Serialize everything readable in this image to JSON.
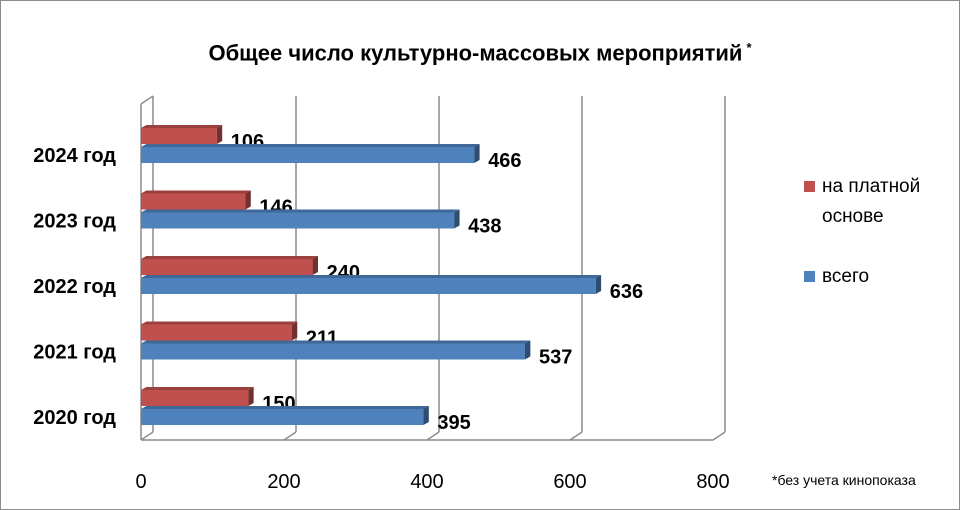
{
  "chart_data": {
    "type": "bar",
    "orientation": "horizontal",
    "title": "Общее число культурно-массовых мероприятий",
    "title_mark": "*",
    "categories": [
      "2024 год",
      "2023 год",
      "2022 год",
      "2021 год",
      "2020 год"
    ],
    "series": [
      {
        "name": "на платной основе",
        "values": [
          106,
          146,
          240,
          211,
          150
        ],
        "color": "#c0504d"
      },
      {
        "name": "всего",
        "values": [
          466,
          438,
          636,
          537,
          395
        ],
        "color": "#4f81bd"
      }
    ],
    "xlim": [
      0,
      800
    ],
    "xticks": [
      "0",
      "200",
      "400",
      "600",
      "800"
    ],
    "grid": true,
    "legend_position": "right",
    "footnote": "*без учета кинопоказа"
  }
}
